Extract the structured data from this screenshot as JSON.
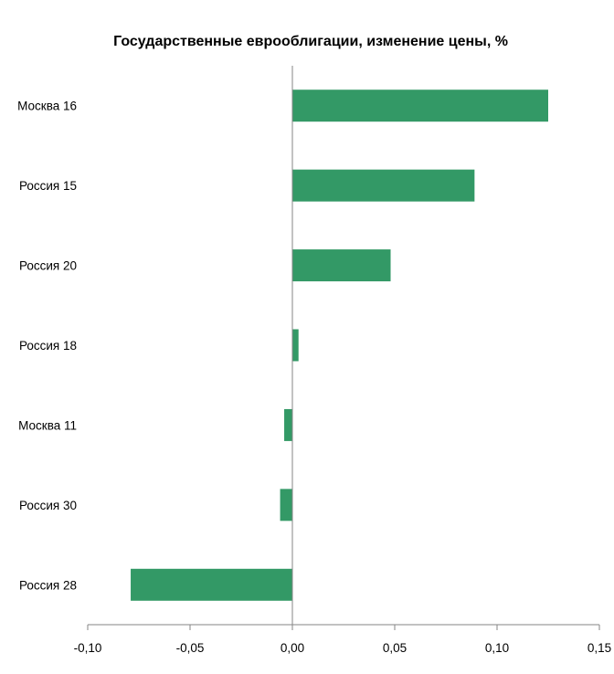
{
  "chart_data": {
    "type": "bar",
    "orientation": "horizontal",
    "title": "Государственные еврооблигации, изменение цены, %",
    "xlabel": "",
    "ylabel": "",
    "categories": [
      "Москва 16",
      "Россия 15",
      "Россия 20",
      "Россия 18",
      "Москва 11",
      "Россия 30",
      "Россия 28"
    ],
    "values": [
      0.125,
      0.089,
      0.048,
      0.003,
      -0.004,
      -0.006,
      -0.079
    ],
    "xlim": [
      -0.1,
      0.15
    ],
    "xticks": [
      -0.1,
      -0.05,
      0.0,
      0.05,
      0.1,
      0.15
    ],
    "xtick_labels": [
      "-0,10",
      "-0,05",
      "0,00",
      "0,05",
      "0,10",
      "0,15"
    ],
    "grid": false,
    "legend": "none",
    "bar_color": "#339966",
    "axis_color": "#868686"
  }
}
